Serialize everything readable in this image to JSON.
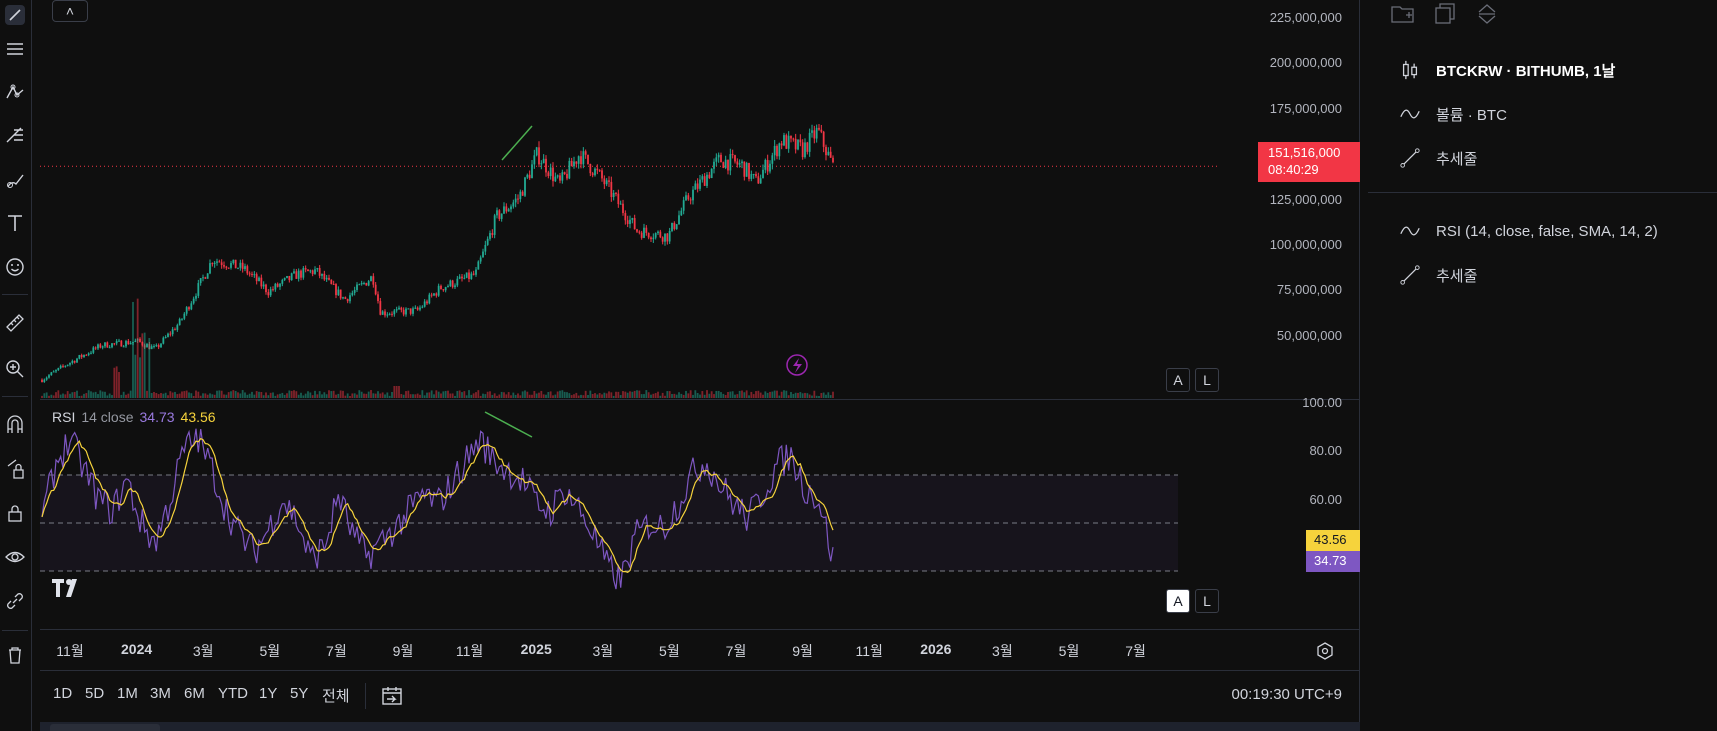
{
  "symbol_title": "BTCKRW · BITHUMB, 1날",
  "volume_title": "볼륨 · BTC",
  "trendline_label": "추세줄",
  "rsi_title": "RSI (14, close, false, SMA, 14, 2)",
  "trendline_label_2": "추세줄",
  "collapse_glyph": "˄",
  "price_axis": [
    "225,000,000",
    "200,000,000",
    "175,000,000",
    "151,516,000",
    "125,000,000",
    "100,000,000",
    "75,000,000",
    "50,000,000"
  ],
  "last_price": "151,516,000",
  "countdown": "08:40:29",
  "auto_label": "A",
  "log_label": "L",
  "rsi_axis": [
    "100.00",
    "80.00",
    "60.00"
  ],
  "rsi_legend": {
    "name": "RSI",
    "params": "14 close",
    "value1": "34.73",
    "value2": "43.56"
  },
  "rsi_value_ma": "43.56",
  "rsi_value": "34.73",
  "time_axis": [
    {
      "label": "11월",
      "year": false
    },
    {
      "label": "2024",
      "year": true
    },
    {
      "label": "3월",
      "year": false
    },
    {
      "label": "5월",
      "year": false
    },
    {
      "label": "7월",
      "year": false
    },
    {
      "label": "9월",
      "year": false
    },
    {
      "label": "11월",
      "year": false
    },
    {
      "label": "2025",
      "year": true
    },
    {
      "label": "3월",
      "year": false
    },
    {
      "label": "5월",
      "year": false
    },
    {
      "label": "7월",
      "year": false
    },
    {
      "label": "9월",
      "year": false
    },
    {
      "label": "11월",
      "year": false
    },
    {
      "label": "2026",
      "year": true
    },
    {
      "label": "3월",
      "year": false
    },
    {
      "label": "5월",
      "year": false
    },
    {
      "label": "7월",
      "year": false
    }
  ],
  "timeframes": [
    "1D",
    "5D",
    "1M",
    "3M",
    "6M",
    "YTD",
    "1Y",
    "5Y",
    "전체"
  ],
  "clock": "00:19:30 UTC+9",
  "colors": {
    "up": "#22ab94",
    "down": "#f23645",
    "rsi_line": "#7e57c2",
    "rsi_ma": "#f6d33c",
    "trendline": "#4caf50",
    "price_tag": "#f23645",
    "background": "#0f0f0f"
  },
  "chart_data": {
    "type": "candlestick",
    "price_scale": {
      "min": 35000000,
      "max": 230000000
    },
    "price_series_approx": [
      [
        "2023-10-20",
        40000000
      ],
      [
        "2023-11-10",
        48000000
      ],
      [
        "2023-12-10",
        58000000
      ],
      [
        "2024-01-10",
        60000000
      ],
      [
        "2024-01-25",
        56000000
      ],
      [
        "2024-02-15",
        70000000
      ],
      [
        "2024-03-05",
        92000000
      ],
      [
        "2024-03-14",
        103000000
      ],
      [
        "2024-04-10",
        98000000
      ],
      [
        "2024-05-01",
        86000000
      ],
      [
        "2024-05-25",
        95000000
      ],
      [
        "2024-06-10",
        97000000
      ],
      [
        "2024-07-05",
        82000000
      ],
      [
        "2024-07-29",
        94000000
      ],
      [
        "2024-08-05",
        75000000
      ],
      [
        "2024-09-05",
        76000000
      ],
      [
        "2024-09-25",
        88000000
      ],
      [
        "2024-10-25",
        95000000
      ],
      [
        "2024-11-12",
        125000000
      ],
      [
        "2024-12-01",
        135000000
      ],
      [
        "2024-12-17",
        158000000
      ],
      [
        "2025-01-05",
        142000000
      ],
      [
        "2025-01-22",
        158000000
      ],
      [
        "2025-02-10",
        145000000
      ],
      [
        "2025-03-01",
        128000000
      ],
      [
        "2025-03-12",
        118000000
      ],
      [
        "2025-04-08",
        115000000
      ],
      [
        "2025-04-25",
        135000000
      ],
      [
        "2025-05-22",
        155000000
      ],
      [
        "2025-06-10",
        152000000
      ],
      [
        "2025-06-22",
        143000000
      ],
      [
        "2025-07-14",
        165000000
      ],
      [
        "2025-08-01",
        160000000
      ],
      [
        "2025-08-14",
        170000000
      ],
      [
        "2025-08-27",
        151516000
      ]
    ],
    "rsi_levels": {
      "upper": 70,
      "middle": 50,
      "lower": 30
    },
    "rsi_series_approx": [
      [
        0,
        52
      ],
      [
        1,
        75
      ],
      [
        2,
        85
      ],
      [
        3,
        72
      ],
      [
        4,
        60
      ],
      [
        5,
        55
      ],
      [
        6,
        68
      ],
      [
        7,
        50
      ],
      [
        8,
        42
      ],
      [
        9,
        58
      ],
      [
        10,
        80
      ],
      [
        11,
        86
      ],
      [
        12,
        73
      ],
      [
        13,
        56
      ],
      [
        14,
        45
      ],
      [
        15,
        38
      ],
      [
        16,
        47
      ],
      [
        17,
        60
      ],
      [
        18,
        52
      ],
      [
        19,
        35
      ],
      [
        20,
        40
      ],
      [
        21,
        62
      ],
      [
        22,
        45
      ],
      [
        23,
        36
      ],
      [
        24,
        42
      ],
      [
        25,
        48
      ],
      [
        26,
        55
      ],
      [
        27,
        62
      ],
      [
        28,
        58
      ],
      [
        29,
        66
      ],
      [
        30,
        76
      ],
      [
        31,
        85
      ],
      [
        32,
        76
      ],
      [
        33,
        72
      ],
      [
        34,
        68
      ],
      [
        35,
        58
      ],
      [
        36,
        55
      ],
      [
        37,
        64
      ],
      [
        38,
        56
      ],
      [
        39,
        46
      ],
      [
        40,
        32
      ],
      [
        41,
        26
      ],
      [
        42,
        44
      ],
      [
        43,
        50
      ],
      [
        44,
        48
      ],
      [
        45,
        58
      ],
      [
        46,
        70
      ],
      [
        47,
        76
      ],
      [
        48,
        66
      ],
      [
        49,
        58
      ],
      [
        50,
        52
      ],
      [
        51,
        62
      ],
      [
        52,
        74
      ],
      [
        53,
        78
      ],
      [
        54,
        65
      ],
      [
        55,
        60
      ],
      [
        56,
        35
      ]
    ],
    "rsi_scale": {
      "min": 20,
      "max": 100
    }
  }
}
